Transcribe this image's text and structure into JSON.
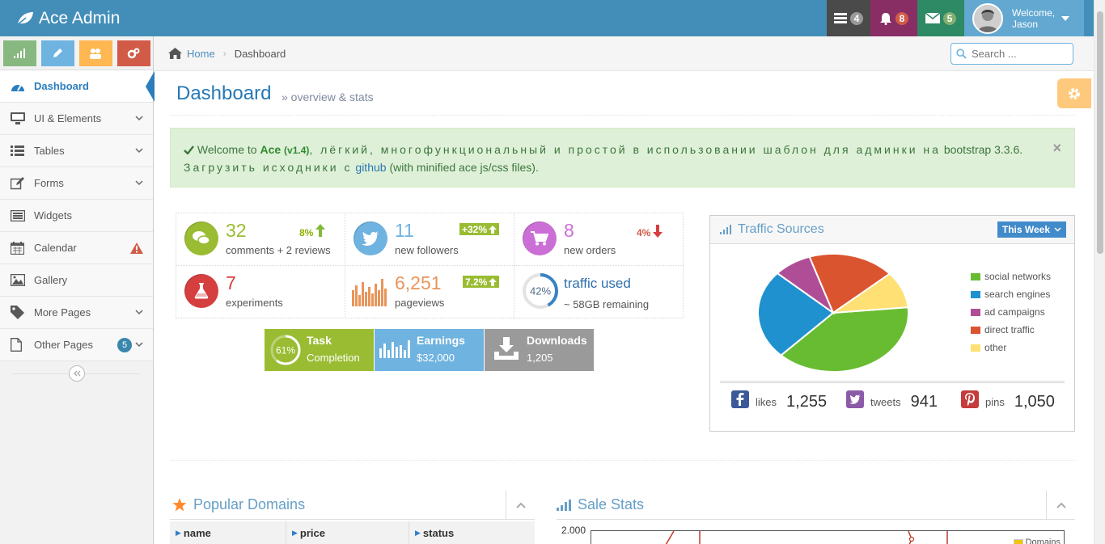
{
  "navbar": {
    "brand": "Ace Admin",
    "tasks_count": "4",
    "notifications_count": "8",
    "messages_count": "5",
    "welcome": "Welcome,",
    "user": "Jason"
  },
  "sidebar": {
    "items": [
      {
        "label": "Dashboard",
        "icon": "tachometer-icon"
      },
      {
        "label": "UI & Elements",
        "icon": "desktop-icon"
      },
      {
        "label": "Tables",
        "icon": "list-icon"
      },
      {
        "label": "Forms",
        "icon": "edit-icon"
      },
      {
        "label": "Widgets",
        "icon": "list-alt-icon"
      },
      {
        "label": "Calendar",
        "icon": "calendar-icon"
      },
      {
        "label": "Gallery",
        "icon": "picture-icon"
      },
      {
        "label": "More Pages",
        "icon": "tag-icon"
      },
      {
        "label": "Other Pages",
        "icon": "file-icon",
        "badge": "5"
      }
    ]
  },
  "breadcrumb": {
    "home": "Home",
    "current": "Dashboard"
  },
  "search": {
    "placeholder": "Search ..."
  },
  "page": {
    "title": "Dashboard",
    "subtitle": "» overview & stats"
  },
  "alert": {
    "welcome": "Welcome to",
    "ace": "Ace",
    "version": "(v1.4)",
    "text_ru1": ", лёгкий, многофункциональный и простой в использовании шаблон для админки на",
    "bootstrap": "bootstrap 3.3.6.",
    "text_ru2": "Загрузить исходники с",
    "link": "github",
    "tail": "(with minified ace js/css files)."
  },
  "infoboxes": [
    {
      "number": "32",
      "label": "comments + 2 reviews",
      "stat": "8%",
      "color": "#6fb3e0"
    },
    {
      "number": "11",
      "label": "new followers",
      "stat": "+32%"
    },
    {
      "number": "8",
      "label": "new orders",
      "stat": "4%"
    },
    {
      "number": "7",
      "label": "experiments"
    },
    {
      "number": "6,251",
      "label": "pageviews",
      "stat": "7.2%"
    },
    {
      "number": "42%",
      "label": "traffic used",
      "sublabel": "~ 58GB remaining",
      "percent": 42
    }
  ],
  "dark_boxes": [
    {
      "percent": "61%",
      "title": "Task",
      "sub": "Completion",
      "value": 61
    },
    {
      "title": "Earnings",
      "sub": "$32,000"
    },
    {
      "title": "Downloads",
      "sub": "1,205"
    }
  ],
  "traffic": {
    "title": "Traffic Sources",
    "range": "This Week",
    "legend": [
      {
        "label": "social networks",
        "color": "#68bc31",
        "value": 38.7
      },
      {
        "label": "search engines",
        "color": "#2091cf",
        "value": 24.5
      },
      {
        "label": "ad campaigns",
        "color": "#af4e96",
        "value": 8.2
      },
      {
        "label": "direct traffic",
        "color": "#da5430",
        "value": 18.6
      },
      {
        "label": "other",
        "color": "#fee074",
        "value": 10
      }
    ],
    "likes_label": "likes",
    "likes": "1,255",
    "tweets_label": "tweets",
    "tweets": "941",
    "pins_label": "pins",
    "pins": "1,050"
  },
  "popular": {
    "title": "Popular Domains",
    "columns": [
      "name",
      "price",
      "status"
    ]
  },
  "sales": {
    "title": "Sale Stats",
    "y_top": "2.000",
    "legend": "Domains"
  }
}
